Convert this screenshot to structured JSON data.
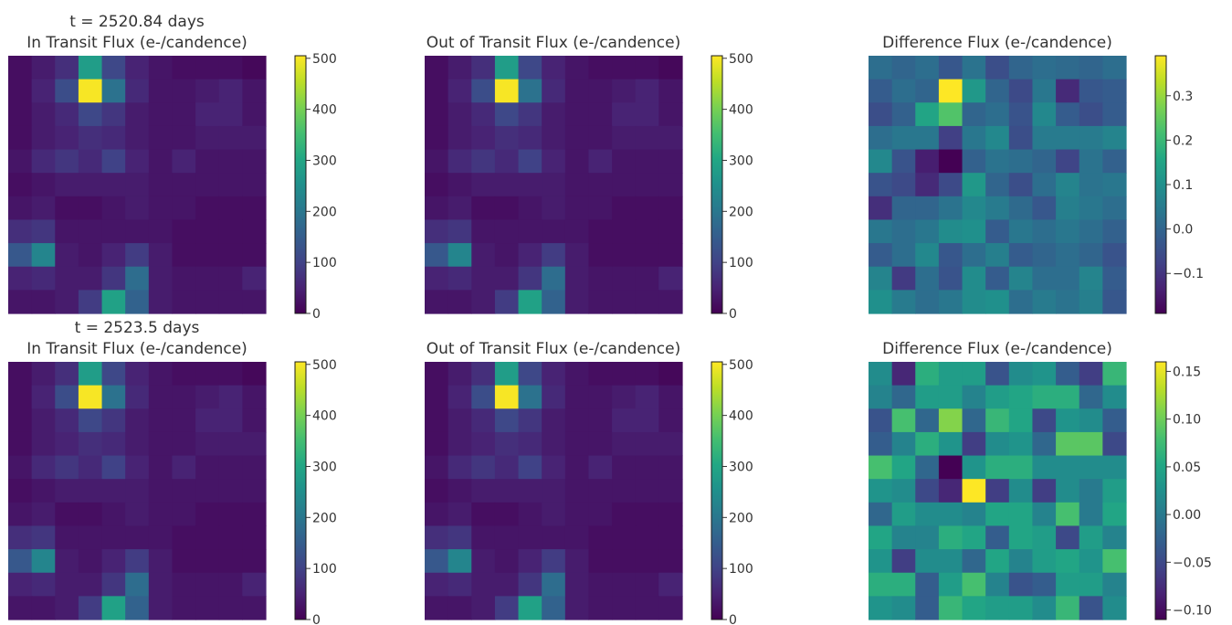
{
  "figure": {
    "type": "heatmap-grid",
    "rows": 2,
    "cols": 3
  },
  "chart_data": [
    {
      "type": "heatmap",
      "row": 0,
      "col": 0,
      "time_label": "t = 2520.84 days",
      "title": "In Transit Flux (e-/candence)",
      "colormap": "viridis",
      "colorbar": {
        "vmin": 0,
        "vmax": 505,
        "ticks": [
          0,
          100,
          200,
          300,
          400,
          500
        ],
        "tick_labels": [
          "0",
          "100",
          "200",
          "300",
          "400",
          "500"
        ]
      },
      "grid": [
        [
          20,
          40,
          70,
          280,
          110,
          50,
          30,
          20,
          20,
          20,
          10
        ],
        [
          20,
          50,
          120,
          500,
          190,
          60,
          30,
          30,
          40,
          50,
          30
        ],
        [
          20,
          40,
          60,
          110,
          80,
          40,
          30,
          30,
          50,
          50,
          30
        ],
        [
          20,
          40,
          50,
          70,
          60,
          40,
          30,
          30,
          40,
          40,
          40
        ],
        [
          30,
          60,
          80,
          60,
          100,
          50,
          30,
          50,
          30,
          30,
          30
        ],
        [
          20,
          30,
          40,
          40,
          40,
          40,
          30,
          30,
          30,
          30,
          30
        ],
        [
          30,
          40,
          20,
          20,
          30,
          40,
          30,
          30,
          20,
          20,
          20
        ],
        [
          70,
          80,
          30,
          30,
          30,
          30,
          30,
          20,
          20,
          20,
          20
        ],
        [
          140,
          230,
          40,
          30,
          50,
          90,
          40,
          20,
          20,
          20,
          20
        ],
        [
          50,
          60,
          40,
          40,
          80,
          180,
          40,
          30,
          30,
          30,
          50
        ],
        [
          30,
          30,
          40,
          90,
          290,
          160,
          40,
          30,
          30,
          30,
          30
        ]
      ]
    },
    {
      "type": "heatmap",
      "row": 0,
      "col": 1,
      "title": "Out of Transit Flux (e-/candence)",
      "colormap": "viridis",
      "colorbar": {
        "vmin": 0,
        "vmax": 505,
        "ticks": [
          0,
          100,
          200,
          300,
          400,
          500
        ],
        "tick_labels": [
          "0",
          "100",
          "200",
          "300",
          "400",
          "500"
        ]
      },
      "grid": [
        [
          20,
          40,
          70,
          280,
          110,
          50,
          30,
          20,
          20,
          20,
          10
        ],
        [
          20,
          50,
          120,
          500,
          190,
          60,
          30,
          30,
          40,
          50,
          30
        ],
        [
          20,
          40,
          60,
          110,
          80,
          40,
          30,
          30,
          50,
          50,
          30
        ],
        [
          20,
          40,
          50,
          70,
          60,
          40,
          30,
          30,
          40,
          40,
          40
        ],
        [
          30,
          60,
          80,
          60,
          100,
          50,
          30,
          50,
          30,
          30,
          30
        ],
        [
          20,
          30,
          40,
          40,
          40,
          40,
          30,
          30,
          30,
          30,
          30
        ],
        [
          30,
          40,
          20,
          20,
          30,
          40,
          30,
          30,
          20,
          20,
          20
        ],
        [
          70,
          80,
          30,
          30,
          30,
          30,
          30,
          20,
          20,
          20,
          20
        ],
        [
          140,
          230,
          40,
          30,
          50,
          90,
          40,
          20,
          20,
          20,
          20
        ],
        [
          50,
          60,
          40,
          40,
          80,
          180,
          40,
          30,
          30,
          30,
          50
        ],
        [
          30,
          30,
          40,
          90,
          290,
          160,
          40,
          30,
          30,
          30,
          30
        ]
      ]
    },
    {
      "type": "heatmap",
      "row": 0,
      "col": 2,
      "title": "Difference Flux (e-/candence)",
      "colormap": "viridis",
      "colorbar": {
        "vmin": -0.19,
        "vmax": 0.39,
        "ticks": [
          -0.1,
          0.0,
          0.1,
          0.2,
          0.3
        ],
        "tick_labels": [
          "−0.1",
          "0.0",
          "0.1",
          "0.2",
          "0.3"
        ]
      },
      "grid": [
        [
          0.02,
          0.0,
          0.02,
          -0.03,
          0.03,
          -0.05,
          0.0,
          0.02,
          0.01,
          0.0,
          0.02
        ],
        [
          -0.02,
          0.02,
          0.0,
          0.39,
          0.12,
          0.0,
          -0.06,
          0.04,
          -0.12,
          -0.03,
          -0.02
        ],
        [
          -0.05,
          -0.01,
          0.15,
          0.23,
          0.0,
          0.02,
          -0.04,
          0.08,
          -0.02,
          -0.05,
          -0.02
        ],
        [
          0.02,
          0.04,
          0.04,
          -0.08,
          0.04,
          0.08,
          -0.05,
          0.05,
          0.05,
          0.05,
          0.07
        ],
        [
          0.08,
          -0.04,
          -0.14,
          -0.19,
          -0.01,
          0.03,
          0.02,
          0.0,
          -0.07,
          0.03,
          -0.01
        ],
        [
          -0.04,
          -0.06,
          -0.12,
          -0.06,
          0.12,
          0.0,
          -0.05,
          0.02,
          0.07,
          0.03,
          0.04
        ],
        [
          -0.11,
          0.0,
          0.0,
          0.03,
          0.08,
          0.05,
          0.01,
          -0.03,
          0.06,
          0.04,
          0.02
        ],
        [
          0.04,
          0.02,
          0.04,
          0.09,
          0.1,
          -0.02,
          0.04,
          0.02,
          0.04,
          0.02,
          -0.01
        ],
        [
          -0.02,
          0.02,
          0.08,
          -0.03,
          0.02,
          0.06,
          -0.02,
          0.0,
          0.02,
          0.0,
          -0.04
        ],
        [
          0.07,
          -0.09,
          0.02,
          -0.04,
          0.09,
          -0.02,
          0.07,
          0.02,
          0.02,
          0.07,
          -0.02
        ],
        [
          0.1,
          0.05,
          0.02,
          0.04,
          0.09,
          0.1,
          0.02,
          0.05,
          0.03,
          0.06,
          -0.03
        ]
      ]
    },
    {
      "type": "heatmap",
      "row": 1,
      "col": 0,
      "time_label": "t = 2523.5 days",
      "title": "In Transit Flux (e-/candence)",
      "colormap": "viridis",
      "colorbar": {
        "vmin": 0,
        "vmax": 505,
        "ticks": [
          0,
          100,
          200,
          300,
          400,
          500
        ],
        "tick_labels": [
          "0",
          "100",
          "200",
          "300",
          "400",
          "500"
        ]
      },
      "grid": [
        [
          20,
          40,
          70,
          280,
          110,
          50,
          30,
          20,
          20,
          20,
          10
        ],
        [
          20,
          50,
          120,
          500,
          190,
          60,
          30,
          30,
          40,
          50,
          30
        ],
        [
          20,
          40,
          60,
          110,
          80,
          40,
          30,
          30,
          50,
          50,
          30
        ],
        [
          20,
          40,
          50,
          70,
          60,
          40,
          30,
          30,
          40,
          40,
          40
        ],
        [
          30,
          60,
          80,
          60,
          100,
          50,
          30,
          50,
          30,
          30,
          30
        ],
        [
          20,
          30,
          40,
          40,
          40,
          40,
          30,
          30,
          30,
          30,
          30
        ],
        [
          30,
          40,
          20,
          20,
          30,
          40,
          30,
          30,
          20,
          20,
          20
        ],
        [
          70,
          80,
          30,
          30,
          30,
          30,
          30,
          20,
          20,
          20,
          20
        ],
        [
          140,
          230,
          40,
          30,
          50,
          90,
          40,
          20,
          20,
          20,
          20
        ],
        [
          50,
          60,
          40,
          40,
          80,
          180,
          40,
          30,
          30,
          30,
          50
        ],
        [
          30,
          30,
          40,
          90,
          290,
          160,
          40,
          30,
          30,
          30,
          30
        ]
      ]
    },
    {
      "type": "heatmap",
      "row": 1,
      "col": 1,
      "title": "Out of Transit Flux (e-/candence)",
      "colormap": "viridis",
      "colorbar": {
        "vmin": 0,
        "vmax": 505,
        "ticks": [
          0,
          100,
          200,
          300,
          400,
          500
        ],
        "tick_labels": [
          "0",
          "100",
          "200",
          "300",
          "400",
          "500"
        ]
      },
      "grid": [
        [
          20,
          40,
          70,
          280,
          110,
          50,
          30,
          20,
          20,
          20,
          10
        ],
        [
          20,
          50,
          120,
          500,
          190,
          60,
          30,
          30,
          40,
          50,
          30
        ],
        [
          20,
          40,
          60,
          110,
          80,
          40,
          30,
          30,
          50,
          50,
          30
        ],
        [
          20,
          40,
          50,
          70,
          60,
          40,
          30,
          30,
          40,
          40,
          40
        ],
        [
          30,
          60,
          80,
          60,
          100,
          50,
          30,
          50,
          30,
          30,
          30
        ],
        [
          20,
          30,
          40,
          40,
          40,
          40,
          30,
          30,
          30,
          30,
          30
        ],
        [
          30,
          40,
          20,
          20,
          30,
          40,
          30,
          30,
          20,
          20,
          20
        ],
        [
          70,
          80,
          30,
          30,
          30,
          30,
          30,
          20,
          20,
          20,
          20
        ],
        [
          140,
          230,
          40,
          30,
          50,
          90,
          40,
          20,
          20,
          20,
          20
        ],
        [
          50,
          60,
          40,
          40,
          80,
          180,
          40,
          30,
          30,
          30,
          50
        ],
        [
          30,
          30,
          40,
          90,
          290,
          160,
          40,
          30,
          30,
          30,
          30
        ]
      ]
    },
    {
      "type": "heatmap",
      "row": 1,
      "col": 2,
      "title": "Difference Flux (e-/candence)",
      "colormap": "viridis",
      "colorbar": {
        "vmin": -0.11,
        "vmax": 0.16,
        "ticks": [
          -0.1,
          -0.05,
          0.0,
          0.05,
          0.1,
          0.15
        ],
        "tick_labels": [
          "−0.10",
          "−0.05",
          "0.00",
          "0.05",
          "0.10",
          "0.15"
        ]
      },
      "grid": [
        [
          0.02,
          -0.08,
          0.06,
          0.04,
          0.04,
          -0.04,
          0.02,
          0.03,
          -0.03,
          -0.06,
          0.07
        ],
        [
          0.01,
          -0.02,
          0.04,
          0.04,
          0.01,
          0.04,
          0.05,
          0.06,
          0.06,
          -0.02,
          0.02
        ],
        [
          -0.04,
          0.08,
          -0.02,
          0.11,
          -0.02,
          0.07,
          0.05,
          -0.05,
          0.03,
          0.02,
          -0.03
        ],
        [
          -0.03,
          0.01,
          0.06,
          0.03,
          -0.06,
          0.02,
          0.03,
          -0.02,
          0.09,
          0.09,
          -0.05
        ],
        [
          0.08,
          0.05,
          -0.02,
          -0.11,
          0.03,
          0.06,
          0.06,
          0.02,
          0.02,
          0.02,
          0.02
        ],
        [
          0.03,
          0.02,
          -0.05,
          -0.08,
          0.16,
          -0.06,
          0.02,
          -0.06,
          0.02,
          0.0,
          0.04
        ],
        [
          -0.02,
          0.04,
          0.02,
          0.02,
          0.01,
          0.05,
          0.05,
          0.01,
          0.08,
          0.0,
          0.05
        ],
        [
          0.05,
          0.01,
          0.01,
          0.06,
          0.05,
          -0.03,
          0.05,
          0.04,
          -0.05,
          0.04,
          0.01
        ],
        [
          0.03,
          -0.06,
          0.02,
          0.02,
          -0.02,
          0.05,
          0.01,
          0.04,
          0.05,
          0.03,
          0.08
        ],
        [
          0.06,
          0.06,
          -0.03,
          0.04,
          0.08,
          0.01,
          -0.04,
          -0.03,
          0.04,
          0.04,
          0.01
        ],
        [
          0.03,
          0.02,
          -0.03,
          0.07,
          0.05,
          0.04,
          0.04,
          0.02,
          0.07,
          -0.04,
          0.02
        ]
      ]
    }
  ]
}
